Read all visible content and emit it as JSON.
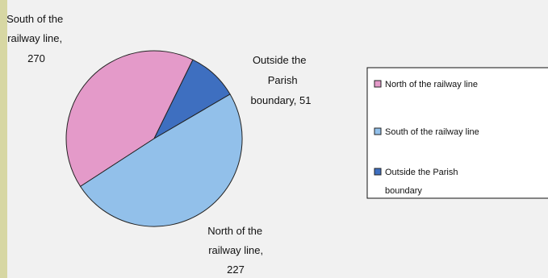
{
  "chart_data": {
    "type": "pie",
    "title": "",
    "slices": [
      {
        "name": "North of the railway line",
        "value": 227,
        "color": "#e49ac9",
        "label_lines": [
          "North of the",
          "railway line,",
          "227"
        ]
      },
      {
        "name": "South of the railway line",
        "value": 270,
        "color": "#92c0ea",
        "label_lines": [
          "South of the",
          "railway line,",
          "270"
        ]
      },
      {
        "name": "Outside the Parish boundary",
        "value": 51,
        "color": "#3e6fc0",
        "label_lines": [
          "Outside the",
          "Parish",
          "boundary, 51"
        ]
      }
    ],
    "legend": {
      "placement": "right",
      "entries": [
        {
          "lines": [
            "North of the railway line"
          ]
        },
        {
          "lines": [
            "South of the railway line"
          ]
        },
        {
          "lines": [
            "Outside the Parish",
            "boundary"
          ]
        }
      ]
    }
  }
}
